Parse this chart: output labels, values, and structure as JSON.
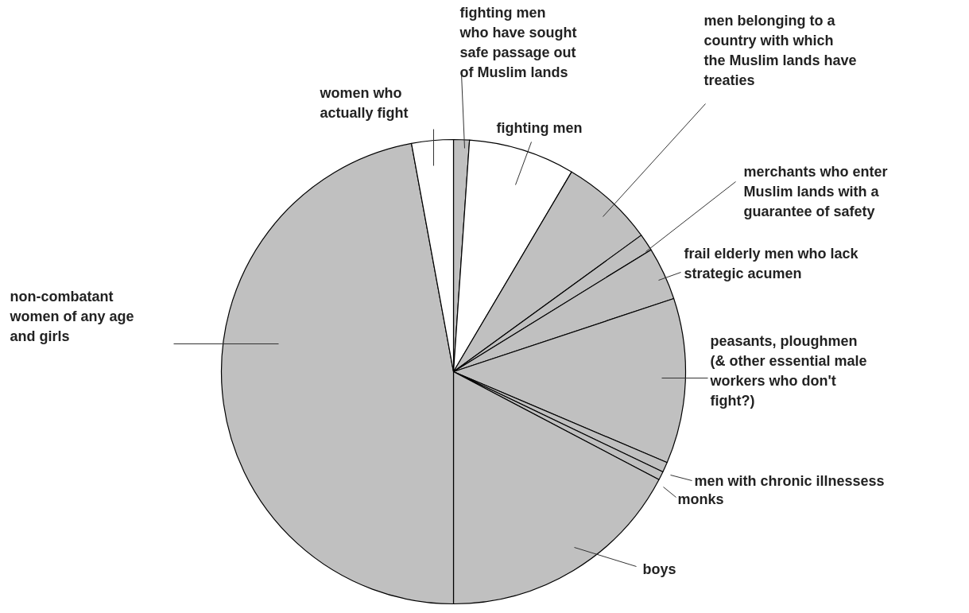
{
  "chart_data": {
    "type": "pie",
    "categories": [
      "fighting men\nwho have sought\nsafe passage out\nof Muslim lands",
      "fighting men",
      "men belonging to a\ncountry with which\nthe Muslim lands have\ntreaties",
      "merchants who enter\nMuslim lands with a\nguarantee of safety",
      "frail elderly men who lack\nstrategic acumen",
      "peasants, ploughmen\n(& other essential male\nworkers who don't\nfight?)",
      "men with chronic illnessess",
      "monks",
      "boys",
      "non-combatant\nwomen of any age\nand girls",
      "women who\nactually fight"
    ],
    "values": [
      1.1,
      7.4,
      6.5,
      1.2,
      3.7,
      11.5,
      0.7,
      0.6,
      17.3,
      47.1,
      2.9
    ],
    "colors": [
      "#c0c0c0",
      "#ffffff",
      "#c0c0c0",
      "#c0c0c0",
      "#c0c0c0",
      "#c0c0c0",
      "#c0c0c0",
      "#c0c0c0",
      "#c0c0c0",
      "#c0c0c0",
      "#ffffff"
    ]
  }
}
